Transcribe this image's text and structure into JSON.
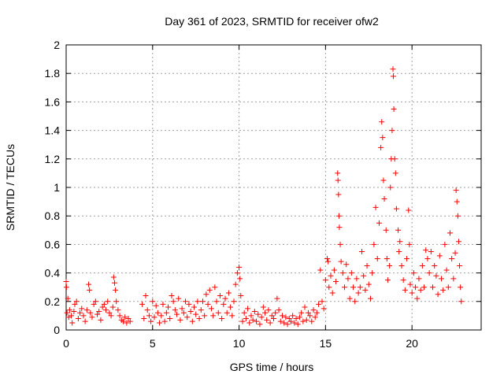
{
  "chart_data": {
    "type": "scatter",
    "title": "Day 361 of 2023, SRMTID for receiver ofw2",
    "xlabel": "GPS time / hours",
    "ylabel": "SRMTID / TECUs",
    "xlim": [
      0,
      24
    ],
    "ylim": [
      0,
      2
    ],
    "x_ticks": [
      0,
      5,
      10,
      15,
      20
    ],
    "y_ticks": [
      0,
      0.2,
      0.4,
      0.6,
      0.8,
      1,
      1.2,
      1.4,
      1.6,
      1.8,
      2
    ],
    "x_tick_labels": [
      "0",
      "5",
      "10",
      "15",
      "20"
    ],
    "y_tick_labels": [
      "0",
      "0.2",
      "0.4",
      "0.6",
      "0.8",
      "1",
      "1.2",
      "1.4",
      "1.6",
      "1.8",
      "2"
    ],
    "grid": true,
    "marker": "plus",
    "series": [
      {
        "name": "SRMTID",
        "color": "#ff0000",
        "points": [
          [
            0.0,
            0.34
          ],
          [
            0.02,
            0.3
          ],
          [
            0.05,
            0.12
          ],
          [
            0.1,
            0.22
          ],
          [
            0.15,
            0.09
          ],
          [
            0.2,
            0.14
          ],
          [
            0.3,
            0.1
          ],
          [
            0.35,
            0.05
          ],
          [
            0.45,
            0.13
          ],
          [
            0.5,
            0.18
          ],
          [
            0.6,
            0.2
          ],
          [
            0.7,
            0.08
          ],
          [
            0.8,
            0.12
          ],
          [
            0.9,
            0.15
          ],
          [
            1.0,
            0.1
          ],
          [
            1.1,
            0.06
          ],
          [
            1.2,
            0.14
          ],
          [
            1.3,
            0.32
          ],
          [
            1.35,
            0.28
          ],
          [
            1.4,
            0.12
          ],
          [
            1.5,
            0.09
          ],
          [
            1.6,
            0.18
          ],
          [
            1.7,
            0.2
          ],
          [
            1.8,
            0.11
          ],
          [
            1.9,
            0.13
          ],
          [
            2.0,
            0.07
          ],
          [
            2.1,
            0.16
          ],
          [
            2.2,
            0.18
          ],
          [
            2.3,
            0.14
          ],
          [
            2.4,
            0.2
          ],
          [
            2.5,
            0.12
          ],
          [
            2.6,
            0.1
          ],
          [
            2.7,
            0.16
          ],
          [
            2.75,
            0.37
          ],
          [
            2.8,
            0.33
          ],
          [
            2.85,
            0.28
          ],
          [
            2.9,
            0.2
          ],
          [
            3.0,
            0.14
          ],
          [
            3.1,
            0.1
          ],
          [
            3.2,
            0.07
          ],
          [
            3.3,
            0.06
          ],
          [
            3.4,
            0.09
          ],
          [
            3.5,
            0.05
          ],
          [
            3.6,
            0.08
          ],
          [
            3.7,
            0.06
          ],
          [
            4.4,
            0.18
          ],
          [
            4.5,
            0.08
          ],
          [
            4.6,
            0.24
          ],
          [
            4.7,
            0.14
          ],
          [
            4.8,
            0.1
          ],
          [
            4.9,
            0.06
          ],
          [
            5.0,
            0.2
          ],
          [
            5.1,
            0.09
          ],
          [
            5.2,
            0.17
          ],
          [
            5.3,
            0.12
          ],
          [
            5.4,
            0.05
          ],
          [
            5.5,
            0.1
          ],
          [
            5.6,
            0.18
          ],
          [
            5.7,
            0.06
          ],
          [
            5.8,
            0.12
          ],
          [
            5.9,
            0.16
          ],
          [
            6.0,
            0.08
          ],
          [
            6.1,
            0.24
          ],
          [
            6.2,
            0.2
          ],
          [
            6.3,
            0.14
          ],
          [
            6.4,
            0.11
          ],
          [
            6.5,
            0.22
          ],
          [
            6.6,
            0.07
          ],
          [
            6.7,
            0.15
          ],
          [
            6.8,
            0.12
          ],
          [
            6.9,
            0.2
          ],
          [
            7.0,
            0.09
          ],
          [
            7.1,
            0.18
          ],
          [
            7.2,
            0.13
          ],
          [
            7.3,
            0.06
          ],
          [
            7.4,
            0.16
          ],
          [
            7.5,
            0.11
          ],
          [
            7.6,
            0.2
          ],
          [
            7.7,
            0.08
          ],
          [
            7.8,
            0.14
          ],
          [
            7.9,
            0.2
          ],
          [
            8.0,
            0.1
          ],
          [
            8.1,
            0.25
          ],
          [
            8.2,
            0.18
          ],
          [
            8.3,
            0.28
          ],
          [
            8.4,
            0.15
          ],
          [
            8.5,
            0.1
          ],
          [
            8.6,
            0.3
          ],
          [
            8.7,
            0.2
          ],
          [
            8.8,
            0.12
          ],
          [
            8.9,
            0.24
          ],
          [
            9.0,
            0.08
          ],
          [
            9.1,
            0.18
          ],
          [
            9.2,
            0.22
          ],
          [
            9.3,
            0.12
          ],
          [
            9.4,
            0.26
          ],
          [
            9.5,
            0.16
          ],
          [
            9.6,
            0.1
          ],
          [
            9.7,
            0.2
          ],
          [
            9.8,
            0.32
          ],
          [
            9.9,
            0.4
          ],
          [
            10.0,
            0.44
          ],
          [
            10.05,
            0.36
          ],
          [
            10.1,
            0.24
          ],
          [
            10.2,
            0.06
          ],
          [
            10.3,
            0.12
          ],
          [
            10.4,
            0.08
          ],
          [
            10.5,
            0.15
          ],
          [
            10.6,
            0.05
          ],
          [
            10.7,
            0.1
          ],
          [
            10.8,
            0.07
          ],
          [
            10.9,
            0.13
          ],
          [
            11.0,
            0.06
          ],
          [
            11.1,
            0.11
          ],
          [
            11.2,
            0.04
          ],
          [
            11.3,
            0.09
          ],
          [
            11.4,
            0.16
          ],
          [
            11.5,
            0.12
          ],
          [
            11.6,
            0.07
          ],
          [
            11.7,
            0.14
          ],
          [
            11.8,
            0.05
          ],
          [
            11.9,
            0.1
          ],
          [
            12.0,
            0.08
          ],
          [
            12.1,
            0.12
          ],
          [
            12.2,
            0.22
          ],
          [
            12.3,
            0.14
          ],
          [
            12.4,
            0.06
          ],
          [
            12.5,
            0.1
          ],
          [
            12.6,
            0.05
          ],
          [
            12.7,
            0.09
          ],
          [
            12.8,
            0.04
          ],
          [
            12.9,
            0.08
          ],
          [
            13.0,
            0.06
          ],
          [
            13.1,
            0.1
          ],
          [
            13.2,
            0.05
          ],
          [
            13.3,
            0.08
          ],
          [
            13.4,
            0.04
          ],
          [
            13.5,
            0.09
          ],
          [
            13.6,
            0.12
          ],
          [
            13.7,
            0.06
          ],
          [
            13.8,
            0.16
          ],
          [
            13.9,
            0.07
          ],
          [
            14.0,
            0.12
          ],
          [
            14.1,
            0.1
          ],
          [
            14.2,
            0.06
          ],
          [
            14.3,
            0.14
          ],
          [
            14.4,
            0.09
          ],
          [
            14.5,
            0.12
          ],
          [
            14.6,
            0.18
          ],
          [
            14.7,
            0.42
          ],
          [
            14.8,
            0.2
          ],
          [
            14.9,
            0.15
          ],
          [
            15.0,
            0.35
          ],
          [
            15.1,
            0.5
          ],
          [
            15.15,
            0.48
          ],
          [
            15.2,
            0.3
          ],
          [
            15.3,
            0.38
          ],
          [
            15.4,
            0.26
          ],
          [
            15.5,
            0.42
          ],
          [
            15.6,
            0.34
          ],
          [
            15.7,
            1.1
          ],
          [
            15.72,
            1.05
          ],
          [
            15.75,
            0.95
          ],
          [
            15.78,
            0.8
          ],
          [
            15.8,
            0.72
          ],
          [
            15.85,
            0.6
          ],
          [
            15.9,
            0.48
          ],
          [
            16.0,
            0.4
          ],
          [
            16.1,
            0.3
          ],
          [
            16.2,
            0.46
          ],
          [
            16.3,
            0.36
          ],
          [
            16.4,
            0.22
          ],
          [
            16.5,
            0.4
          ],
          [
            16.6,
            0.3
          ],
          [
            16.7,
            0.2
          ],
          [
            16.8,
            0.36
          ],
          [
            16.9,
            0.26
          ],
          [
            17.0,
            0.3
          ],
          [
            17.1,
            0.55
          ],
          [
            17.2,
            0.38
          ],
          [
            17.3,
            0.28
          ],
          [
            17.4,
            0.45
          ],
          [
            17.5,
            0.32
          ],
          [
            17.6,
            0.22
          ],
          [
            17.7,
            0.4
          ],
          [
            17.8,
            0.6
          ],
          [
            17.9,
            0.86
          ],
          [
            18.0,
            0.5
          ],
          [
            18.1,
            0.75
          ],
          [
            18.2,
            1.28
          ],
          [
            18.25,
            1.46
          ],
          [
            18.3,
            1.35
          ],
          [
            18.35,
            1.05
          ],
          [
            18.4,
            0.92
          ],
          [
            18.5,
            0.7
          ],
          [
            18.55,
            0.5
          ],
          [
            18.6,
            0.35
          ],
          [
            18.7,
            0.45
          ],
          [
            18.75,
            1.0
          ],
          [
            18.8,
            1.2
          ],
          [
            18.85,
            1.4
          ],
          [
            18.9,
            1.83
          ],
          [
            18.92,
            1.78
          ],
          [
            18.95,
            1.55
          ],
          [
            19.0,
            1.2
          ],
          [
            19.05,
            1.1
          ],
          [
            19.1,
            0.85
          ],
          [
            19.2,
            0.7
          ],
          [
            19.25,
            0.55
          ],
          [
            19.3,
            0.62
          ],
          [
            19.4,
            0.45
          ],
          [
            19.5,
            0.35
          ],
          [
            19.6,
            0.28
          ],
          [
            19.7,
            0.5
          ],
          [
            19.8,
            0.84
          ],
          [
            19.85,
            0.6
          ],
          [
            19.9,
            0.32
          ],
          [
            20.0,
            0.26
          ],
          [
            20.1,
            0.4
          ],
          [
            20.2,
            0.3
          ],
          [
            20.3,
            0.22
          ],
          [
            20.4,
            0.36
          ],
          [
            20.5,
            0.28
          ],
          [
            20.6,
            0.45
          ],
          [
            20.7,
            0.3
          ],
          [
            20.8,
            0.56
          ],
          [
            20.9,
            0.5
          ],
          [
            21.0,
            0.4
          ],
          [
            21.1,
            0.55
          ],
          [
            21.2,
            0.3
          ],
          [
            21.3,
            0.45
          ],
          [
            21.4,
            0.38
          ],
          [
            21.5,
            0.25
          ],
          [
            21.6,
            0.52
          ],
          [
            21.7,
            0.36
          ],
          [
            21.8,
            0.28
          ],
          [
            21.9,
            0.6
          ],
          [
            22.0,
            0.42
          ],
          [
            22.1,
            0.3
          ],
          [
            22.2,
            0.68
          ],
          [
            22.3,
            0.5
          ],
          [
            22.4,
            0.36
          ],
          [
            22.5,
            0.54
          ],
          [
            22.55,
            0.98
          ],
          [
            22.6,
            0.9
          ],
          [
            22.65,
            0.8
          ],
          [
            22.7,
            0.62
          ],
          [
            22.75,
            0.45
          ],
          [
            22.8,
            0.3
          ],
          [
            22.85,
            0.2
          ]
        ]
      }
    ]
  }
}
